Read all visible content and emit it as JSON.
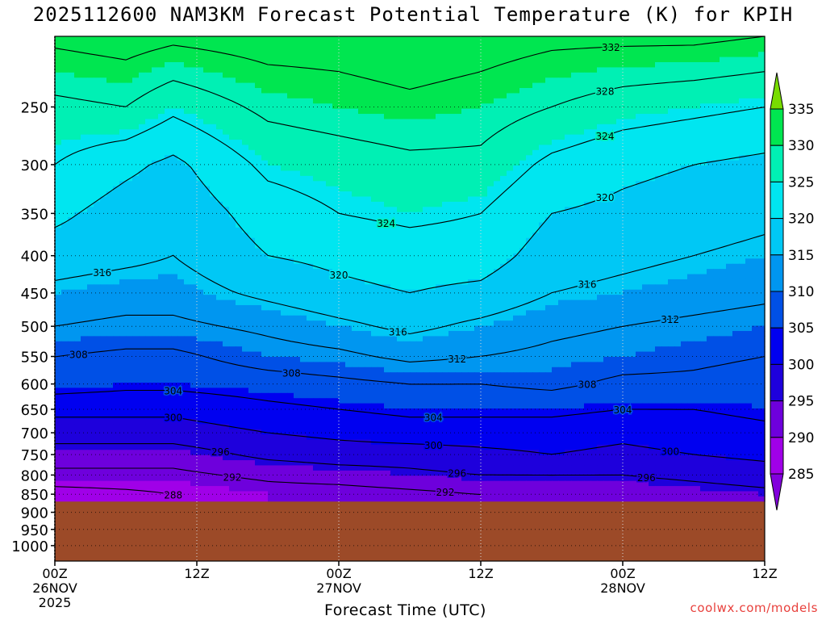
{
  "chart_data": {
    "type": "heatmap",
    "title": "2025112600 NAM3KM Forecast Potential Temperature (K) for KPIH",
    "xlabel": "Forecast Time (UTC)",
    "ylabel": "",
    "source": "coolwx.com/models",
    "x_ticks": [
      {
        "hour": 0,
        "lines": [
          "00Z",
          "26NOV",
          "2025"
        ]
      },
      {
        "hour": 12,
        "lines": [
          "12Z"
        ]
      },
      {
        "hour": 24,
        "lines": [
          "00Z",
          "27NOV"
        ]
      },
      {
        "hour": 36,
        "lines": [
          "12Z"
        ]
      },
      {
        "hour": 48,
        "lines": [
          "00Z",
          "28NOV"
        ]
      },
      {
        "hour": 60,
        "lines": [
          "12Z"
        ]
      }
    ],
    "xlim": [
      0,
      60
    ],
    "y_ticks": [
      250,
      300,
      350,
      400,
      450,
      500,
      550,
      600,
      650,
      700,
      750,
      800,
      850,
      900,
      950,
      1000
    ],
    "ylim": [
      200,
      1050
    ],
    "y_scale": "log-pressure",
    "surface_pressure": 870,
    "colorbar": {
      "ticks": [
        285,
        290,
        295,
        300,
        305,
        310,
        315,
        320,
        325,
        330,
        335
      ],
      "bins": [
        {
          "lo": 280,
          "hi": 285,
          "color": "#8200dc"
        },
        {
          "lo": 285,
          "hi": 290,
          "color": "#a000e8"
        },
        {
          "lo": 290,
          "hi": 295,
          "color": "#6e00dc"
        },
        {
          "lo": 295,
          "hi": 300,
          "color": "#1e00dc"
        },
        {
          "lo": 300,
          "hi": 305,
          "color": "#0000f0"
        },
        {
          "lo": 305,
          "hi": 310,
          "color": "#0050e6"
        },
        {
          "lo": 310,
          "hi": 315,
          "color": "#0096f0"
        },
        {
          "lo": 315,
          "hi": 320,
          "color": "#00c8f5"
        },
        {
          "lo": 320,
          "hi": 325,
          "color": "#00e6f0"
        },
        {
          "lo": 325,
          "hi": 330,
          "color": "#00f0b4"
        },
        {
          "lo": 330,
          "hi": 335,
          "color": "#00e650"
        },
        {
          "lo": 335,
          "hi": 340,
          "color": "#78dc00"
        }
      ]
    },
    "contour_levels": [
      288,
      292,
      296,
      300,
      304,
      308,
      312,
      316,
      320,
      324,
      328,
      332
    ],
    "contour_labels": [
      {
        "level": 332,
        "hour": 47.0
      },
      {
        "level": 328,
        "hour": 46.5
      },
      {
        "level": 324,
        "hour": 46.5
      },
      {
        "level": 320,
        "hour": 46.5
      },
      {
        "level": 324,
        "hour": 28.0
      },
      {
        "level": 320,
        "hour": 24.0
      },
      {
        "level": 316,
        "hour": 4.0
      },
      {
        "level": 316,
        "hour": 45.0
      },
      {
        "level": 316,
        "hour": 29.0
      },
      {
        "level": 312,
        "hour": 34.0
      },
      {
        "level": 312,
        "hour": 52.0
      },
      {
        "level": 308,
        "hour": 2.0
      },
      {
        "level": 308,
        "hour": 20.0
      },
      {
        "level": 308,
        "hour": 45.0
      },
      {
        "level": 304,
        "hour": 10.0
      },
      {
        "level": 304,
        "hour": 32.0
      },
      {
        "level": 304,
        "hour": 48.0
      },
      {
        "level": 300,
        "hour": 10.0
      },
      {
        "level": 300,
        "hour": 32.0
      },
      {
        "level": 300,
        "hour": 52.0
      },
      {
        "level": 296,
        "hour": 14.0
      },
      {
        "level": 296,
        "hour": 34.0
      },
      {
        "level": 296,
        "hour": 50.0
      },
      {
        "level": 292,
        "hour": 15.0
      },
      {
        "level": 292,
        "hour": 33.0
      },
      {
        "level": 288,
        "hour": 11.0
      }
    ],
    "theta_profiles": [
      {
        "hour": 0,
        "points": [
          [
            200,
            333
          ],
          [
            250,
            327
          ],
          [
            300,
            324
          ],
          [
            350,
            321
          ],
          [
            400,
            318
          ],
          [
            450,
            315
          ],
          [
            500,
            312
          ],
          [
            550,
            308
          ],
          [
            600,
            306
          ],
          [
            650,
            301
          ],
          [
            700,
            298
          ],
          [
            750,
            294
          ],
          [
            800,
            291
          ],
          [
            850,
            286
          ]
        ]
      },
      {
        "hour": 6,
        "points": [
          [
            200,
            334
          ],
          [
            250,
            328
          ],
          [
            300,
            321
          ],
          [
            350,
            318
          ],
          [
            400,
            317
          ],
          [
            450,
            314
          ],
          [
            500,
            311
          ],
          [
            550,
            307
          ],
          [
            600,
            305
          ],
          [
            650,
            301
          ],
          [
            700,
            298
          ],
          [
            750,
            294
          ],
          [
            800,
            291
          ],
          [
            850,
            287
          ]
        ]
      },
      {
        "hour": 10,
        "points": [
          [
            200,
            333
          ],
          [
            250,
            325
          ],
          [
            300,
            319
          ],
          [
            350,
            317
          ],
          [
            400,
            316
          ],
          [
            450,
            314
          ],
          [
            500,
            311
          ],
          [
            550,
            307
          ],
          [
            600,
            305
          ],
          [
            650,
            301
          ],
          [
            700,
            298
          ],
          [
            750,
            294
          ],
          [
            800,
            291
          ],
          [
            850,
            288
          ]
        ]
      },
      {
        "hour": 18,
        "points": [
          [
            200,
            334
          ],
          [
            250,
            329
          ],
          [
            300,
            325
          ],
          [
            350,
            322
          ],
          [
            400,
            320
          ],
          [
            450,
            317
          ],
          [
            500,
            313
          ],
          [
            550,
            310
          ],
          [
            600,
            306
          ],
          [
            650,
            303
          ],
          [
            700,
            300
          ],
          [
            750,
            297
          ],
          [
            800,
            293
          ],
          [
            850,
            290
          ]
        ]
      },
      {
        "hour": 24,
        "points": [
          [
            200,
            334
          ],
          [
            250,
            330
          ],
          [
            300,
            326
          ],
          [
            350,
            324
          ],
          [
            400,
            321
          ],
          [
            450,
            319
          ],
          [
            500,
            315
          ],
          [
            550,
            311
          ],
          [
            600,
            307
          ],
          [
            650,
            304
          ],
          [
            700,
            301
          ],
          [
            750,
            298
          ],
          [
            800,
            294
          ],
          [
            850,
            290
          ]
        ]
      },
      {
        "hour": 30,
        "points": [
          [
            200,
            335
          ],
          [
            250,
            331
          ],
          [
            300,
            327
          ],
          [
            350,
            325
          ],
          [
            400,
            322
          ],
          [
            450,
            320
          ],
          [
            500,
            317
          ],
          [
            550,
            313
          ],
          [
            600,
            308
          ],
          [
            650,
            305
          ],
          [
            700,
            302
          ],
          [
            750,
            298
          ],
          [
            800,
            295
          ],
          [
            850,
            291
          ]
        ]
      },
      {
        "hour": 36,
        "points": [
          [
            200,
            334
          ],
          [
            250,
            330
          ],
          [
            300,
            327
          ],
          [
            350,
            324
          ],
          [
            400,
            322
          ],
          [
            450,
            319
          ],
          [
            500,
            315
          ],
          [
            550,
            312
          ],
          [
            600,
            308
          ],
          [
            650,
            305
          ],
          [
            700,
            302
          ],
          [
            750,
            299
          ],
          [
            800,
            296
          ],
          [
            850,
            292
          ]
        ]
      },
      {
        "hour": 42,
        "points": [
          [
            200,
            333
          ],
          [
            250,
            328
          ],
          [
            300,
            323
          ],
          [
            350,
            320
          ],
          [
            400,
            318
          ],
          [
            450,
            316
          ],
          [
            500,
            313
          ],
          [
            550,
            311
          ],
          [
            600,
            309
          ],
          [
            650,
            305
          ],
          [
            700,
            302
          ],
          [
            750,
            300
          ],
          [
            800,
            296
          ],
          [
            850,
            293
          ]
        ]
      },
      {
        "hour": 48,
        "points": [
          [
            200,
            333
          ],
          [
            250,
            326
          ],
          [
            300,
            321
          ],
          [
            350,
            319
          ],
          [
            400,
            317
          ],
          [
            450,
            315
          ],
          [
            500,
            312
          ],
          [
            550,
            310
          ],
          [
            600,
            307
          ],
          [
            650,
            304
          ],
          [
            700,
            301
          ],
          [
            750,
            299
          ],
          [
            800,
            296
          ],
          [
            850,
            293
          ]
        ]
      },
      {
        "hour": 54,
        "points": [
          [
            200,
            333
          ],
          [
            250,
            325
          ],
          [
            300,
            320
          ],
          [
            350,
            318
          ],
          [
            400,
            316
          ],
          [
            450,
            314
          ],
          [
            500,
            311
          ],
          [
            550,
            309
          ],
          [
            600,
            307
          ],
          [
            650,
            304
          ],
          [
            700,
            302
          ],
          [
            750,
            300
          ],
          [
            800,
            297
          ],
          [
            850,
            294
          ]
        ]
      },
      {
        "hour": 60,
        "points": [
          [
            200,
            332
          ],
          [
            250,
            324
          ],
          [
            300,
            319
          ],
          [
            350,
            317
          ],
          [
            400,
            315
          ],
          [
            450,
            313
          ],
          [
            500,
            310
          ],
          [
            550,
            308
          ],
          [
            600,
            306
          ],
          [
            650,
            305
          ],
          [
            700,
            303
          ],
          [
            750,
            301
          ],
          [
            800,
            298
          ],
          [
            850,
            295
          ]
        ]
      }
    ],
    "ground_color": "#9c4a28"
  }
}
